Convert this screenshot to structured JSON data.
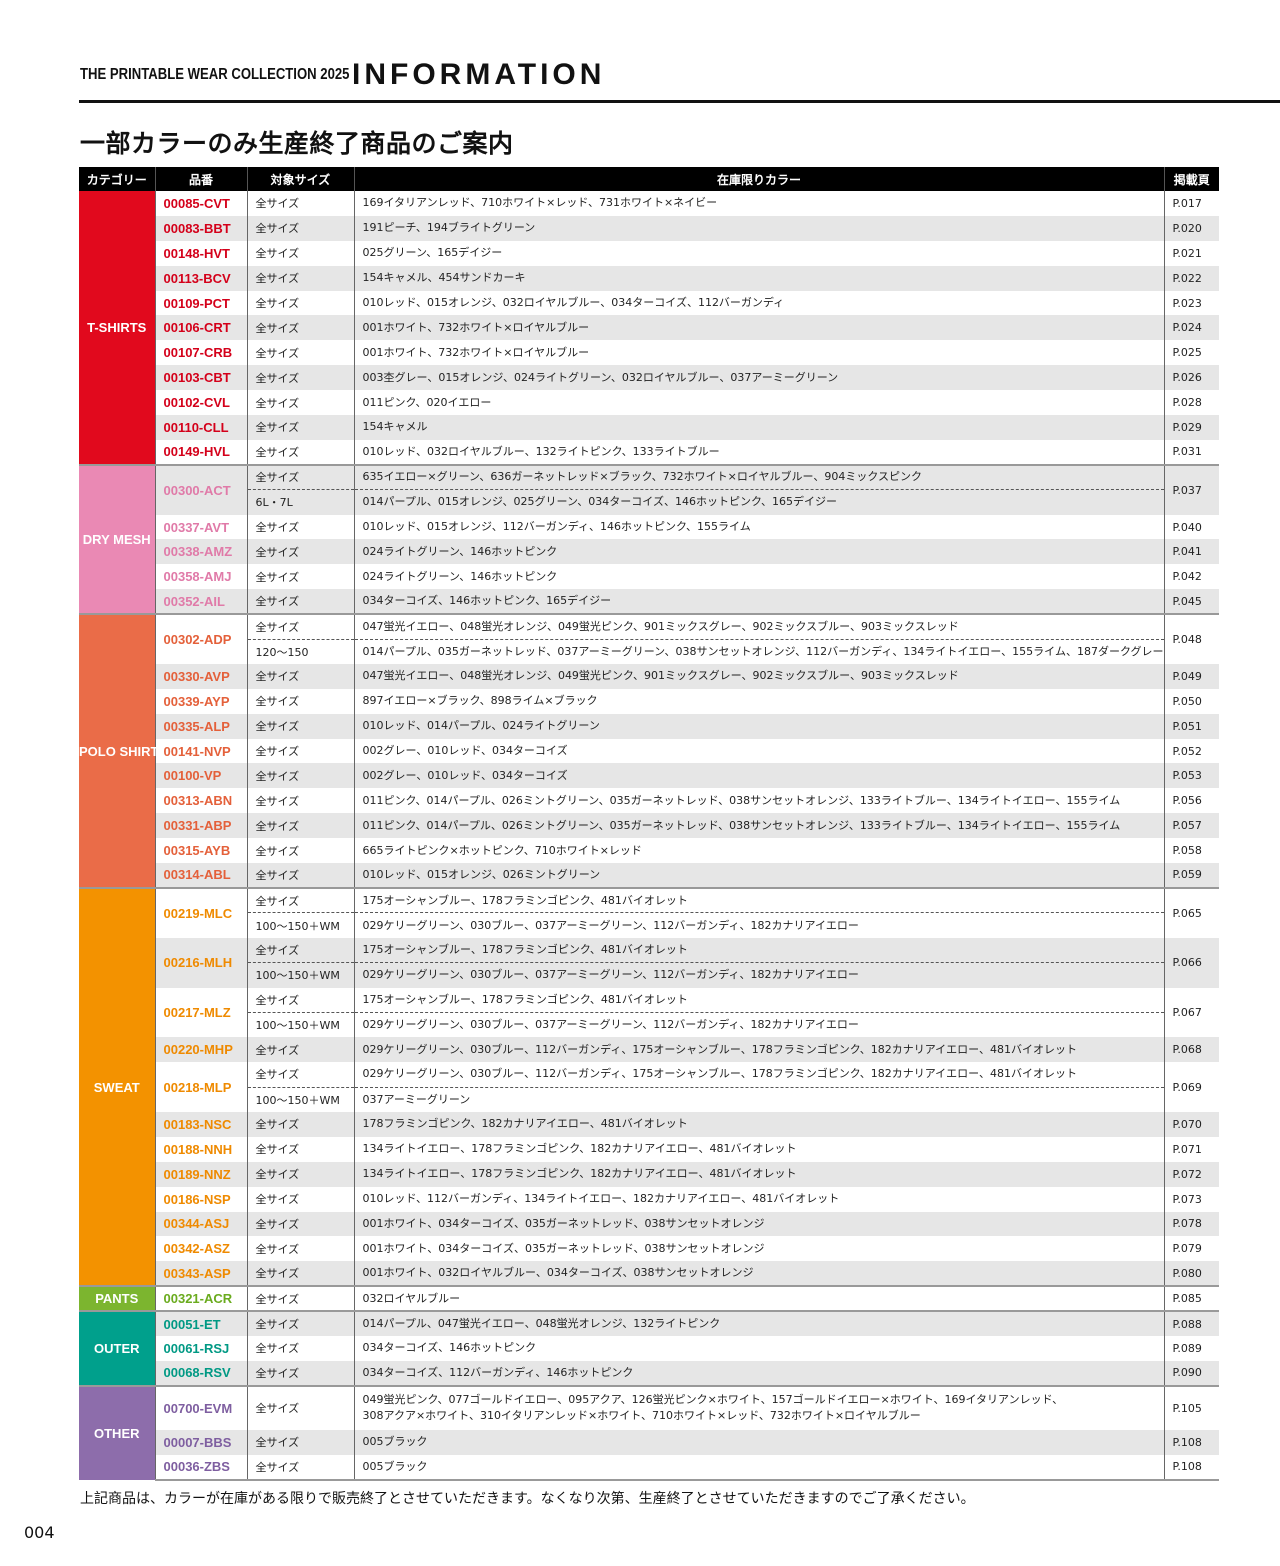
{
  "header": {
    "collection": "THE PRINTABLE WEAR COLLECTION 2025",
    "section": "INFORMATION",
    "title": "一部カラーのみ生産終了商品のご案内"
  },
  "table": {
    "columns": [
      "カテゴリー",
      "品番",
      "対象サイズ",
      "在庫限りカラー",
      "掲載頁"
    ],
    "categories": [
      {
        "name": "T-SHIRTS",
        "color": "#e1091d",
        "text_color": "#d4001a",
        "products": [
          {
            "code": "00085-CVT",
            "page": "P.017",
            "rows": [
              {
                "size": "全サイズ",
                "colors": "169イタリアンレッド、710ホワイト×レッド、731ホワイト×ネイビー"
              }
            ]
          },
          {
            "code": "00083-BBT",
            "page": "P.020",
            "rows": [
              {
                "size": "全サイズ",
                "colors": "191ピーチ、194ブライトグリーン"
              }
            ]
          },
          {
            "code": "00148-HVT",
            "page": "P.021",
            "rows": [
              {
                "size": "全サイズ",
                "colors": "025グリーン、165デイジー"
              }
            ]
          },
          {
            "code": "00113-BCV",
            "page": "P.022",
            "rows": [
              {
                "size": "全サイズ",
                "colors": "154キャメル、454サンドカーキ"
              }
            ]
          },
          {
            "code": "00109-PCT",
            "page": "P.023",
            "rows": [
              {
                "size": "全サイズ",
                "colors": "010レッド、015オレンジ、032ロイヤルブルー、034ターコイズ、112バーガンディ"
              }
            ]
          },
          {
            "code": "00106-CRT",
            "page": "P.024",
            "rows": [
              {
                "size": "全サイズ",
                "colors": "001ホワイト、732ホワイト×ロイヤルブルー"
              }
            ]
          },
          {
            "code": "00107-CRB",
            "page": "P.025",
            "rows": [
              {
                "size": "全サイズ",
                "colors": "001ホワイト、732ホワイト×ロイヤルブルー"
              }
            ]
          },
          {
            "code": "00103-CBT",
            "page": "P.026",
            "rows": [
              {
                "size": "全サイズ",
                "colors": "003杢グレー、015オレンジ、024ライトグリーン、032ロイヤルブルー、037アーミーグリーン"
              }
            ]
          },
          {
            "code": "00102-CVL",
            "page": "P.028",
            "rows": [
              {
                "size": "全サイズ",
                "colors": "011ピンク、020イエロー"
              }
            ]
          },
          {
            "code": "00110-CLL",
            "page": "P.029",
            "rows": [
              {
                "size": "全サイズ",
                "colors": "154キャメル"
              }
            ]
          },
          {
            "code": "00149-HVL",
            "page": "P.031",
            "rows": [
              {
                "size": "全サイズ",
                "colors": "010レッド、032ロイヤルブルー、132ライトピンク、133ライトブルー"
              }
            ]
          }
        ]
      },
      {
        "name": "DRY MESH",
        "color": "#ea89b4",
        "text_color": "#e07aa8",
        "products": [
          {
            "code": "00300-ACT",
            "page": "P.037",
            "rows": [
              {
                "size": "全サイズ",
                "colors": "635イエロー×グリーン、636ガーネットレッド×ブラック、732ホワイト×ロイヤルブルー、904ミックスピンク"
              },
              {
                "size": "6L・7L",
                "colors": "014パープル、015オレンジ、025グリーン、034ターコイズ、146ホットピンク、165デイジー"
              }
            ]
          },
          {
            "code": "00337-AVT",
            "page": "P.040",
            "rows": [
              {
                "size": "全サイズ",
                "colors": "010レッド、015オレンジ、112バーガンディ、146ホットピンク、155ライム"
              }
            ]
          },
          {
            "code": "00338-AMZ",
            "page": "P.041",
            "rows": [
              {
                "size": "全サイズ",
                "colors": "024ライトグリーン、146ホットピンク"
              }
            ]
          },
          {
            "code": "00358-AMJ",
            "page": "P.042",
            "rows": [
              {
                "size": "全サイズ",
                "colors": "024ライトグリーン、146ホットピンク"
              }
            ]
          },
          {
            "code": "00352-AIL",
            "page": "P.045",
            "rows": [
              {
                "size": "全サイズ",
                "colors": "034ターコイズ、146ホットピンク、165デイジー"
              }
            ]
          }
        ]
      },
      {
        "name": "POLO SHIRTS",
        "color": "#ea6c48",
        "text_color": "#e4603a",
        "products": [
          {
            "code": "00302-ADP",
            "page": "P.048",
            "rows": [
              {
                "size": "全サイズ",
                "colors": "047蛍光イエロー、048蛍光オレンジ、049蛍光ピンク、901ミックスグレー、902ミックスブルー、903ミックスレッド"
              },
              {
                "size": "120～150",
                "colors": "014パープル、035ガーネットレッド、037アーミーグリーン、038サンセットオレンジ、112バーガンディ、134ライトイエロー、155ライム、187ダークグレー"
              }
            ]
          },
          {
            "code": "00330-AVP",
            "page": "P.049",
            "rows": [
              {
                "size": "全サイズ",
                "colors": "047蛍光イエロー、048蛍光オレンジ、049蛍光ピンク、901ミックスグレー、902ミックスブルー、903ミックスレッド"
              }
            ]
          },
          {
            "code": "00339-AYP",
            "page": "P.050",
            "rows": [
              {
                "size": "全サイズ",
                "colors": "897イエロー×ブラック、898ライム×ブラック"
              }
            ]
          },
          {
            "code": "00335-ALP",
            "page": "P.051",
            "rows": [
              {
                "size": "全サイズ",
                "colors": "010レッド、014パープル、024ライトグリーン"
              }
            ]
          },
          {
            "code": "00141-NVP",
            "page": "P.052",
            "rows": [
              {
                "size": "全サイズ",
                "colors": "002グレー、010レッド、034ターコイズ"
              }
            ]
          },
          {
            "code": "00100-VP",
            "page": "P.053",
            "rows": [
              {
                "size": "全サイズ",
                "colors": "002グレー、010レッド、034ターコイズ"
              }
            ]
          },
          {
            "code": "00313-ABN",
            "page": "P.056",
            "rows": [
              {
                "size": "全サイズ",
                "colors": "011ピンク、014パープル、026ミントグリーン、035ガーネットレッド、038サンセットオレンジ、133ライトブルー、134ライトイエロー、155ライム"
              }
            ]
          },
          {
            "code": "00331-ABP",
            "page": "P.057",
            "rows": [
              {
                "size": "全サイズ",
                "colors": "011ピンク、014パープル、026ミントグリーン、035ガーネットレッド、038サンセットオレンジ、133ライトブルー、134ライトイエロー、155ライム"
              }
            ]
          },
          {
            "code": "00315-AYB",
            "page": "P.058",
            "rows": [
              {
                "size": "全サイズ",
                "colors": "665ライトピンク×ホットピンク、710ホワイト×レッド"
              }
            ]
          },
          {
            "code": "00314-ABL",
            "page": "P.059",
            "rows": [
              {
                "size": "全サイズ",
                "colors": "010レッド、015オレンジ、026ミントグリーン"
              }
            ]
          }
        ]
      },
      {
        "name": "SWEAT",
        "color": "#f39200",
        "text_color": "#ef8a00",
        "products": [
          {
            "code": "00219-MLC",
            "page": "P.065",
            "rows": [
              {
                "size": "全サイズ",
                "colors": "175オーシャンブルー、178フラミンゴピンク、481バイオレット"
              },
              {
                "size": "100～150＋WM",
                "colors": "029ケリーグリーン、030ブルー、037アーミーグリーン、112バーガンディ、182カナリアイエロー"
              }
            ]
          },
          {
            "code": "00216-MLH",
            "page": "P.066",
            "rows": [
              {
                "size": "全サイズ",
                "colors": "175オーシャンブルー、178フラミンゴピンク、481バイオレット"
              },
              {
                "size": "100～150＋WM",
                "colors": "029ケリーグリーン、030ブルー、037アーミーグリーン、112バーガンディ、182カナリアイエロー"
              }
            ]
          },
          {
            "code": "00217-MLZ",
            "page": "P.067",
            "rows": [
              {
                "size": "全サイズ",
                "colors": "175オーシャンブルー、178フラミンゴピンク、481バイオレット"
              },
              {
                "size": "100～150＋WM",
                "colors": "029ケリーグリーン、030ブルー、037アーミーグリーン、112バーガンディ、182カナリアイエロー"
              }
            ]
          },
          {
            "code": "00220-MHP",
            "page": "P.068",
            "rows": [
              {
                "size": "全サイズ",
                "colors": "029ケリーグリーン、030ブルー、112バーガンディ、175オーシャンブルー、178フラミンゴピンク、182カナリアイエロー、481バイオレット"
              }
            ]
          },
          {
            "code": "00218-MLP",
            "page": "P.069",
            "rows": [
              {
                "size": "全サイズ",
                "colors": "029ケリーグリーン、030ブルー、112バーガンディ、175オーシャンブルー、178フラミンゴピンク、182カナリアイエロー、481バイオレット"
              },
              {
                "size": "100～150＋WM",
                "colors": "037アーミーグリーン"
              }
            ]
          },
          {
            "code": "00183-NSC",
            "page": "P.070",
            "rows": [
              {
                "size": "全サイズ",
                "colors": "178フラミンゴピンク、182カナリアイエロー、481バイオレット"
              }
            ]
          },
          {
            "code": "00188-NNH",
            "page": "P.071",
            "rows": [
              {
                "size": "全サイズ",
                "colors": "134ライトイエロー、178フラミンゴピンク、182カナリアイエロー、481バイオレット"
              }
            ]
          },
          {
            "code": "00189-NNZ",
            "page": "P.072",
            "rows": [
              {
                "size": "全サイズ",
                "colors": "134ライトイエロー、178フラミンゴピンク、182カナリアイエロー、481バイオレット"
              }
            ]
          },
          {
            "code": "00186-NSP",
            "page": "P.073",
            "rows": [
              {
                "size": "全サイズ",
                "colors": "010レッド、112バーガンディ、134ライトイエロー、182カナリアイエロー、481バイオレット"
              }
            ]
          },
          {
            "code": "00344-ASJ",
            "page": "P.078",
            "rows": [
              {
                "size": "全サイズ",
                "colors": "001ホワイト、034ターコイズ、035ガーネットレッド、038サンセットオレンジ"
              }
            ]
          },
          {
            "code": "00342-ASZ",
            "page": "P.079",
            "rows": [
              {
                "size": "全サイズ",
                "colors": "001ホワイト、034ターコイズ、035ガーネットレッド、038サンセットオレンジ"
              }
            ]
          },
          {
            "code": "00343-ASP",
            "page": "P.080",
            "rows": [
              {
                "size": "全サイズ",
                "colors": "001ホワイト、032ロイヤルブルー、034ターコイズ、038サンセットオレンジ"
              }
            ]
          }
        ]
      },
      {
        "name": "PANTS",
        "color": "#7cb52f",
        "text_color": "#6aab1e",
        "products": [
          {
            "code": "00321-ACR",
            "page": "P.085",
            "rows": [
              {
                "size": "全サイズ",
                "colors": "032ロイヤルブルー"
              }
            ]
          }
        ]
      },
      {
        "name": "OUTER",
        "color": "#00a08c",
        "text_color": "#009984",
        "products": [
          {
            "code": "00051-ET",
            "page": "P.088",
            "rows": [
              {
                "size": "全サイズ",
                "colors": "014パープル、047蛍光イエロー、048蛍光オレンジ、132ライトピンク"
              }
            ]
          },
          {
            "code": "00061-RSJ",
            "page": "P.089",
            "rows": [
              {
                "size": "全サイズ",
                "colors": "034ターコイズ、146ホットピンク"
              }
            ]
          },
          {
            "code": "00068-RSV",
            "page": "P.090",
            "rows": [
              {
                "size": "全サイズ",
                "colors": "034ターコイズ、112バーガンディ、146ホットピンク"
              }
            ]
          }
        ]
      },
      {
        "name": "OTHER",
        "color": "#8d6dab",
        "text_color": "#7e5ea0",
        "products": [
          {
            "code": "00700-EVM",
            "page": "P.105",
            "rows": [
              {
                "size": "全サイズ",
                "colors": "049蛍光ピンク、077ゴールドイエロー、095アクア、126蛍光ピンク×ホワイト、157ゴールドイエロー×ホワイト、169イタリアンレッド、\n308アクア×ホワイト、310イタリアンレッド×ホワイト、710ホワイト×レッド、732ホワイト×ロイヤルブルー"
              }
            ]
          },
          {
            "code": "00007-BBS",
            "page": "P.108",
            "rows": [
              {
                "size": "全サイズ",
                "colors": "005ブラック"
              }
            ]
          },
          {
            "code": "00036-ZBS",
            "page": "P.108",
            "rows": [
              {
                "size": "全サイズ",
                "colors": "005ブラック"
              }
            ]
          }
        ]
      }
    ]
  },
  "footer": {
    "note": "上記商品は、カラーが在庫がある限りで販売終了とさせていただきます。なくなり次第、生産終了とさせていただきますのでご了承ください。",
    "page_number": "004"
  }
}
